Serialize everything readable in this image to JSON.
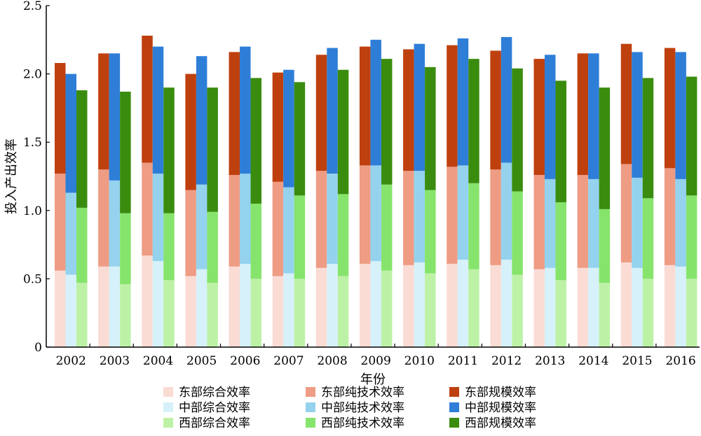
{
  "chart_data": {
    "type": "bar",
    "xlabel": "年份",
    "ylabel": "投入产出效率",
    "ylim": [
      0,
      2.5
    ],
    "yticks": [
      "0",
      "0.5",
      "1.0",
      "1.5",
      "2.0",
      "2.5"
    ],
    "categories": [
      "2002",
      "2003",
      "2004",
      "2005",
      "2006",
      "2007",
      "2008",
      "2009",
      "2010",
      "2011",
      "2012",
      "2013",
      "2014",
      "2015",
      "2016"
    ],
    "legend_position": "bottom",
    "groups": [
      {
        "name": "东部",
        "series": [
          {
            "name": "东部综合效率",
            "color": "#fadcd5",
            "values": [
              0.56,
              0.59,
              0.67,
              0.52,
              0.59,
              0.52,
              0.58,
              0.61,
              0.6,
              0.61,
              0.6,
              0.57,
              0.58,
              0.62,
              0.6
            ]
          },
          {
            "name": "东部纯技术效率",
            "color": "#ee9c84",
            "values": [
              1.27,
              1.3,
              1.35,
              1.15,
              1.26,
              1.21,
              1.29,
              1.33,
              1.29,
              1.32,
              1.3,
              1.26,
              1.26,
              1.34,
              1.31
            ]
          },
          {
            "name": "东部规模效率",
            "color": "#bf400f",
            "values": [
              2.08,
              2.15,
              2.28,
              2.0,
              2.16,
              2.01,
              2.14,
              2.2,
              2.18,
              2.21,
              2.17,
              2.11,
              2.15,
              2.22,
              2.19
            ]
          }
        ]
      },
      {
        "name": "中部",
        "series": [
          {
            "name": "中部综合效率",
            "color": "#d6f1f9",
            "values": [
              0.53,
              0.59,
              0.63,
              0.57,
              0.61,
              0.54,
              0.61,
              0.63,
              0.62,
              0.64,
              0.64,
              0.58,
              0.58,
              0.58,
              0.59
            ]
          },
          {
            "name": "中部纯技术效率",
            "color": "#94d2ee",
            "values": [
              1.13,
              1.22,
              1.27,
              1.19,
              1.27,
              1.17,
              1.27,
              1.33,
              1.29,
              1.33,
              1.35,
              1.23,
              1.23,
              1.24,
              1.23
            ]
          },
          {
            "name": "中部规模效率",
            "color": "#2e7ed8",
            "values": [
              2.0,
              2.15,
              2.2,
              2.13,
              2.2,
              2.03,
              2.19,
              2.25,
              2.22,
              2.26,
              2.27,
              2.14,
              2.15,
              2.16,
              2.16
            ]
          }
        ]
      },
      {
        "name": "西部",
        "series": [
          {
            "name": "西部综合效率",
            "color": "#bdf2a6",
            "values": [
              0.47,
              0.46,
              0.49,
              0.47,
              0.5,
              0.5,
              0.52,
              0.56,
              0.54,
              0.57,
              0.53,
              0.49,
              0.47,
              0.5,
              0.5
            ]
          },
          {
            "name": "西部纯技术效率",
            "color": "#86e46c",
            "values": [
              1.02,
              0.98,
              0.98,
              0.99,
              1.05,
              1.11,
              1.12,
              1.19,
              1.15,
              1.2,
              1.14,
              1.06,
              1.01,
              1.09,
              1.11
            ]
          },
          {
            "name": "西部规模效率",
            "color": "#3a8c0f",
            "values": [
              1.88,
              1.87,
              1.9,
              1.9,
              1.97,
              1.94,
              2.03,
              2.11,
              2.05,
              2.11,
              2.04,
              1.95,
              1.9,
              1.97,
              1.98
            ]
          }
        ]
      }
    ],
    "legend_order": [
      "东部综合效率",
      "东部纯技术效率",
      "东部规模效率",
      "中部综合效率",
      "中部纯技术效率",
      "中部规模效率",
      "西部综合效率",
      "西部纯技术效率",
      "西部规模效率"
    ]
  }
}
